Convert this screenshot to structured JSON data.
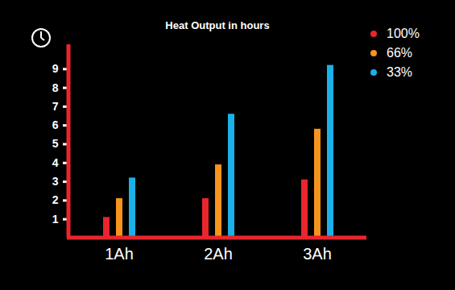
{
  "chart_data": {
    "type": "bar",
    "title": "Heat Output in hours",
    "categories": [
      "1Ah",
      "2Ah",
      "3Ah"
    ],
    "series": [
      {
        "name": "100%",
        "color": "#e8262c",
        "values": [
          1.1,
          2.1,
          3.1
        ]
      },
      {
        "name": "66%",
        "color": "#f7941d",
        "values": [
          2.1,
          3.9,
          5.8
        ]
      },
      {
        "name": "33%",
        "color": "#1bb0e8",
        "values": [
          3.2,
          6.6,
          9.2
        ]
      }
    ],
    "ylim": [
      0,
      10.3
    ],
    "yticks": [
      1,
      2,
      3,
      4,
      5,
      6,
      7,
      8,
      9
    ],
    "legend": "upper right"
  }
}
